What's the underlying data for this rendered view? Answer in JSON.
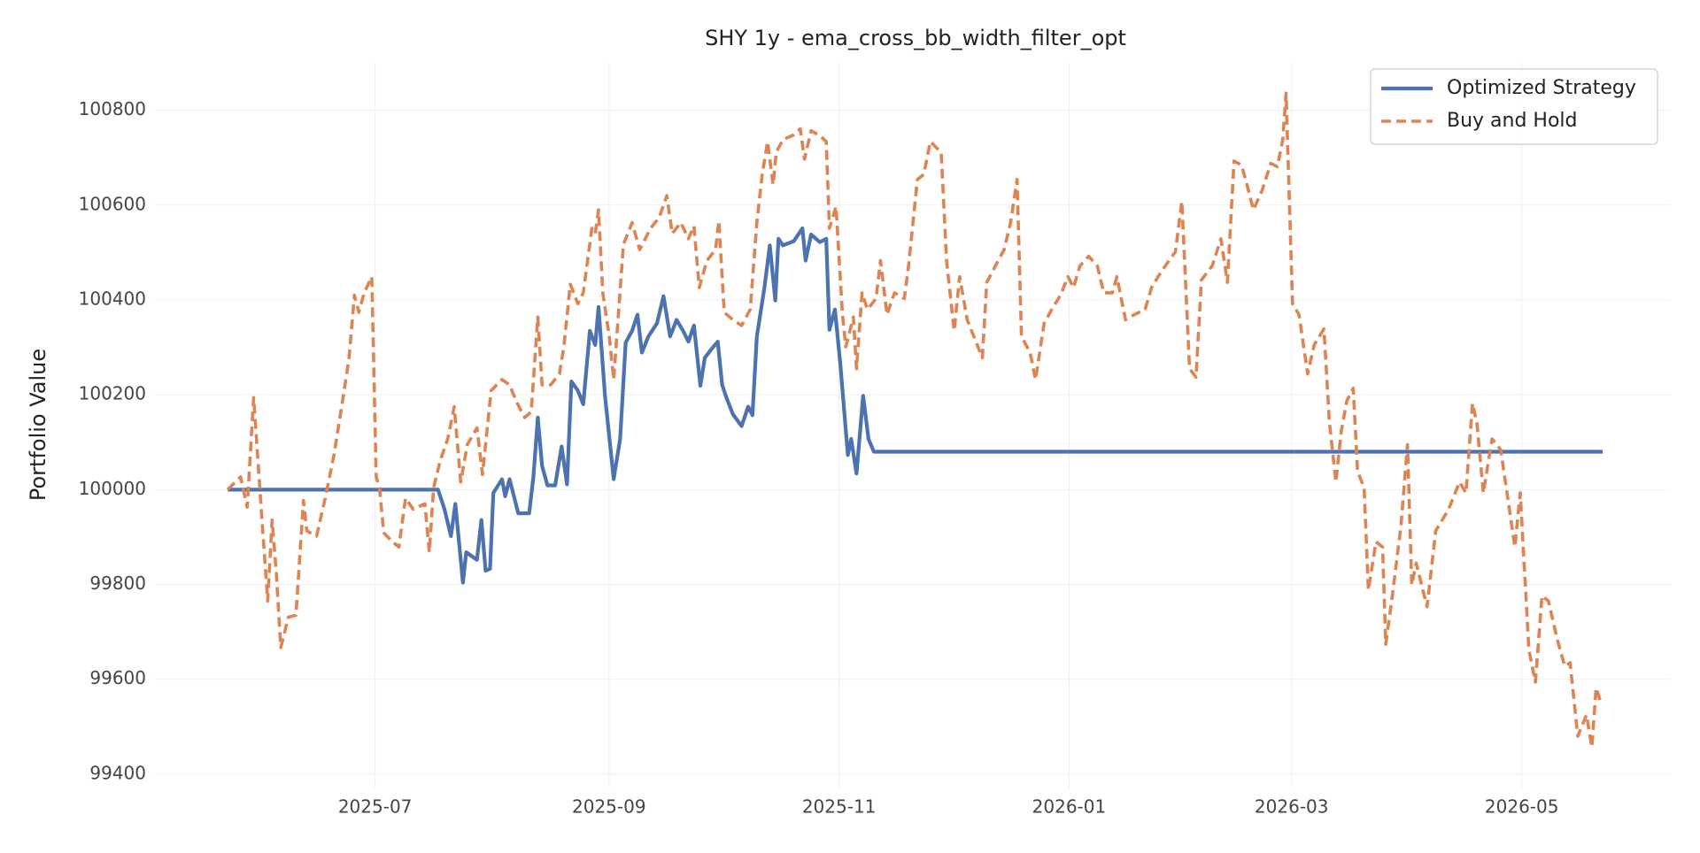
{
  "chart_data": {
    "type": "line",
    "title": "SHY 1y - ema_cross_bb_width_filter_opt",
    "y_label": "Portfolio Value",
    "xlim": [
      2025.336,
      2026.4364
    ],
    "ylim": [
      99370,
      100900
    ],
    "xticks": [
      {
        "value": 2025.4959,
        "label": "2025-07"
      },
      {
        "value": 2025.6658,
        "label": "2025-09"
      },
      {
        "value": 2025.8329,
        "label": "2025-11"
      },
      {
        "value": 2026.0,
        "label": "2026-01"
      },
      {
        "value": 2026.1616,
        "label": "2026-03"
      },
      {
        "value": 2026.3288,
        "label": "2026-05"
      }
    ],
    "yticks": [
      99400,
      99600,
      99800,
      100000,
      100200,
      100400,
      100600,
      100800
    ],
    "grid": true,
    "legend": "upper right",
    "series": [
      {
        "name": "Optimized Strategy",
        "color": "#4c72b0",
        "dash": false,
        "x": [
          2025.3888,
          2025.5416,
          2025.5463,
          2025.551,
          2025.5542,
          2025.5597,
          2025.5621,
          2025.5699,
          2025.5731,
          2025.5762,
          2025.5794,
          2025.5818,
          2025.5881,
          2025.5904,
          2025.5936,
          2025.5999,
          2025.6078,
          2025.6109,
          2025.6141,
          2025.6172,
          2025.6211,
          2025.6267,
          2025.6314,
          2025.6353,
          2025.6385,
          2025.6432,
          2025.6471,
          2025.6519,
          2025.6558,
          2025.6582,
          2025.6629,
          2025.6692,
          2025.6739,
          2025.6779,
          2025.6826,
          2025.6865,
          2025.6897,
          2025.6944,
          2025.7007,
          2025.7054,
          2025.7102,
          2025.7149,
          2025.7196,
          2025.7235,
          2025.7275,
          2025.7322,
          2025.7354,
          2025.7401,
          2025.7448,
          2025.748,
          2025.7511,
          2025.7558,
          2025.7621,
          2025.7669,
          2025.77,
          2025.7732,
          2025.7787,
          2025.7826,
          2025.7866,
          2025.7889,
          2025.7921,
          2025.8,
          2025.8063,
          2025.8086,
          2025.8126,
          2025.8189,
          2025.8236,
          2025.8259,
          2025.8299,
          2025.8338,
          2025.8393,
          2025.8417,
          2025.8456,
          2025.8504,
          2025.8543,
          2025.8582,
          2026.3876
        ],
        "values": [
          100000,
          100000,
          99959,
          99902,
          99970,
          99804,
          99868,
          99852,
          99936,
          99829,
          99833,
          99993,
          100022,
          99986,
          100022,
          99950,
          99950,
          100027,
          100152,
          100050,
          100009,
          100009,
          100091,
          100011,
          100228,
          100209,
          100180,
          100335,
          100305,
          100385,
          100198,
          100022,
          100107,
          100310,
          100335,
          100369,
          100289,
          100323,
          100351,
          100408,
          100323,
          100358,
          100335,
          100312,
          100346,
          100219,
          100278,
          100296,
          100312,
          100221,
          100194,
          100159,
          100134,
          100175,
          100157,
          100323,
          100426,
          100515,
          100399,
          100529,
          100515,
          100524,
          100551,
          100483,
          100538,
          100522,
          100529,
          100337,
          100380,
          100266,
          100073,
          100107,
          100034,
          100198,
          100107,
          100080,
          100080
        ]
      },
      {
        "name": "Buy and Hold",
        "color": "#dd8452",
        "dash": true,
        "x": [
          2025.3888,
          2025.3982,
          2025.403,
          2025.4077,
          2025.4132,
          2025.4179,
          2025.4211,
          2025.4242,
          2025.4274,
          2025.4329,
          2025.4384,
          2025.4439,
          2025.4463,
          2025.4534,
          2025.4597,
          2025.466,
          2025.4723,
          2025.477,
          2025.4809,
          2025.4841,
          2025.488,
          2025.4935,
          2025.4967,
          2025.4991,
          2025.5022,
          2025.5085,
          2025.5132,
          2025.518,
          2025.5235,
          2025.5321,
          2025.5353,
          2025.5384,
          2025.5432,
          2025.5487,
          2025.5534,
          2025.5581,
          2025.5629,
          2025.5699,
          2025.5739,
          2025.5802,
          2025.5881,
          2025.5936,
          2025.5983,
          2025.6046,
          2025.6093,
          2025.6141,
          2025.6172,
          2025.6235,
          2025.6298,
          2025.633,
          2025.6377,
          2025.6432,
          2025.6471,
          2025.6534,
          2025.6558,
          2025.6582,
          2025.6613,
          2025.666,
          2025.6692,
          2025.6763,
          2025.6826,
          2025.6881,
          2025.696,
          2025.7023,
          2025.7078,
          2025.7117,
          2025.718,
          2025.7235,
          2025.7275,
          2025.7314,
          2025.7369,
          2025.7432,
          2025.7456,
          2025.7495,
          2025.7558,
          2025.7621,
          2025.7684,
          2025.7732,
          2025.7771,
          2025.781,
          2025.785,
          2025.7873,
          2025.7921,
          2025.8,
          2025.8047,
          2025.8078,
          2025.8126,
          2025.8196,
          2025.8236,
          2025.8259,
          2025.8307,
          2025.8354,
          2025.8378,
          2025.8433,
          2025.8456,
          2025.8496,
          2025.8535,
          2025.8598,
          2025.863,
          2025.8677,
          2025.8732,
          2025.8803,
          2025.8834,
          2025.8898,
          2025.8945,
          2025.8992,
          2025.9071,
          2025.911,
          2025.9165,
          2025.9205,
          2025.926,
          2025.9323,
          2025.937,
          2025.9402,
          2025.9465,
          2025.9528,
          2025.9575,
          2025.9622,
          2025.9654,
          2025.9717,
          2025.9756,
          2025.9819,
          2025.9874,
          2025.9937,
          2025.9992,
          2026.0032,
          2026.0079,
          2026.0142,
          2026.0205,
          2026.0252,
          2026.0315,
          2026.0347,
          2026.041,
          2026.0473,
          2026.0552,
          2026.0599,
          2026.0646,
          2026.0725,
          2026.0772,
          2026.0819,
          2026.0875,
          2026.0922,
          2026.0961,
          2026.104,
          2026.1103,
          2026.115,
          2026.1198,
          2026.1253,
          2026.1292,
          2026.1339,
          2026.1402,
          2026.1465,
          2026.1513,
          2026.1552,
          2026.1576,
          2026.1623,
          2026.167,
          2026.1733,
          2026.178,
          2026.1851,
          2026.1891,
          2026.1938,
          2026.1977,
          2026.2017,
          2026.2064,
          2026.2095,
          2026.2143,
          2026.2174,
          2026.2229,
          2026.2277,
          2026.23,
          2026.2348,
          2026.2411,
          2026.2458,
          2026.2489,
          2026.2521,
          2026.26,
          2026.2663,
          2026.271,
          2026.2757,
          2026.2836,
          2026.2883,
          2026.293,
          2026.2962,
          2026.3009,
          2026.3072,
          2026.3135,
          2026.3198,
          2026.3238,
          2026.3277,
          2026.334,
          2026.3387,
          2026.3435,
          2026.3482,
          2026.3545,
          2026.36,
          2026.3639,
          2026.3695,
          2026.3758,
          2026.3797,
          2026.3828,
          2026.386
        ],
        "values": [
          100000,
          100027,
          99963,
          100194,
          99959,
          99765,
          99936,
          99822,
          99667,
          99731,
          99735,
          99977,
          99913,
          99902,
          99982,
          100073,
          100187,
          100278,
          100410,
          100374,
          100415,
          100449,
          100027,
          100004,
          99909,
          99890,
          99879,
          99982,
          99959,
          99970,
          99868,
          100004,
          100061,
          100107,
          100175,
          100016,
          100095,
          100130,
          100032,
          100209,
          100232,
          100221,
          100187,
          100152,
          100164,
          100364,
          100221,
          100221,
          100244,
          100301,
          100433,
          100392,
          100415,
          100551,
          100540,
          100590,
          100415,
          100323,
          100232,
          100517,
          100563,
          100506,
          100551,
          100574,
          100620,
          100540,
          100563,
          100529,
          100556,
          100426,
          100483,
          100506,
          100567,
          100374,
          100358,
          100346,
          100380,
          100563,
          100665,
          100734,
          100643,
          100711,
          100738,
          100748,
          100761,
          100697,
          100757,
          100745,
          100734,
          100551,
          100597,
          100369,
          100301,
          100364,
          100255,
          100415,
          100380,
          100403,
          100483,
          100369,
          100415,
          100403,
          100472,
          100654,
          100665,
          100734,
          100711,
          100483,
          100335,
          100449,
          100358,
          100312,
          100278,
          100437,
          100472,
          100506,
          100563,
          100654,
          100323,
          100289,
          100232,
          100351,
          100380,
          100410,
          100449,
          100426,
          100472,
          100492,
          100472,
          100415,
          100415,
          100449,
          100358,
          100369,
          100380,
          100426,
          100449,
          100483,
          100501,
          100608,
          100255,
          100237,
          100442,
          100472,
          100529,
          100437,
          100693,
          100684,
          100643,
          100590,
          100631,
          100688,
          100681,
          100738,
          100836,
          100392,
          100369,
          100244,
          100305,
          100339,
          100141,
          100016,
          100123,
          100187,
          100214,
          100039,
          100004,
          99788,
          99890,
          99879,
          99674,
          99776,
          99925,
          100095,
          99799,
          99845,
          99753,
          99913,
          99936,
          99959,
          100016,
          99993,
          100182,
          100141,
          99993,
          100107,
          100084,
          99959,
          99879,
          99993,
          99662,
          99594,
          99776,
          99765,
          99685,
          99628,
          99635,
          99480,
          99525,
          99457,
          99582,
          99553
        ]
      }
    ]
  }
}
